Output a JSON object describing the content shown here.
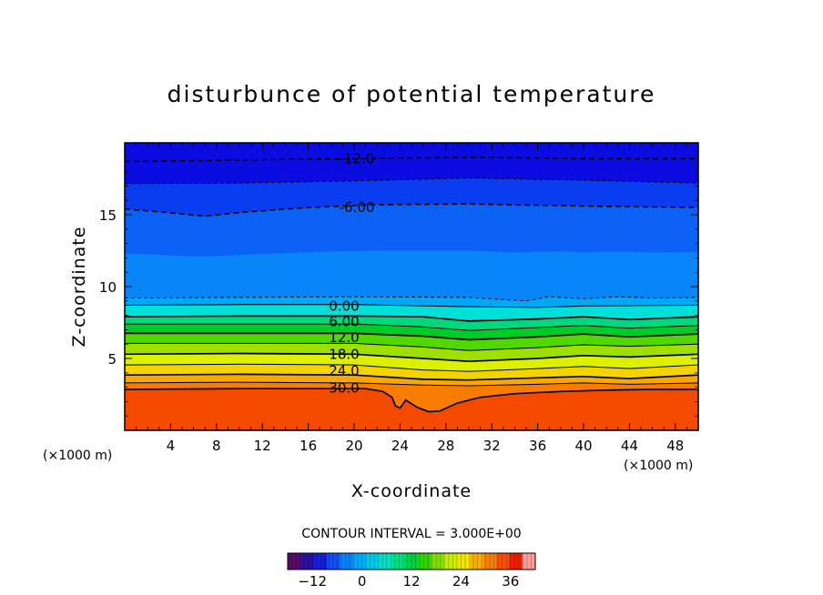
{
  "chart_data": {
    "type": "contour",
    "title": "disturbunce of potential temperature",
    "xlabel": "X-coordinate",
    "ylabel": "Z-coordinate",
    "x_unit": "(×1000 m)",
    "y_unit": "(×1000 m)",
    "xlim": [
      0,
      50
    ],
    "ylim": [
      0,
      20
    ],
    "x_ticks": [
      4,
      8,
      12,
      16,
      20,
      24,
      28,
      32,
      36,
      40,
      44,
      48
    ],
    "y_ticks": [
      5,
      10,
      15
    ],
    "contour_interval_text": "CONTOUR INTERVAL = 3.000E+00",
    "contour_interval": 3.0,
    "fill_levels": [
      -12,
      -9,
      -6,
      -3,
      0,
      3,
      6,
      9,
      12,
      15,
      18,
      21,
      24,
      27,
      30,
      33
    ],
    "fill_colors": [
      "#0b0ce0",
      "#0a3df0",
      "#0c62f5",
      "#0a85f8",
      "#00a8f5",
      "#00e0d8",
      "#00d880",
      "#00cc28",
      "#50d800",
      "#a0e000",
      "#dcf000",
      "#f4d400",
      "#f8a800",
      "#f87c00",
      "#f44a00",
      "#ee2a00"
    ],
    "colorbar_colors": [
      "#5a0a6a",
      "#2a10a0",
      "#1420d8",
      "#1050f0",
      "#0a80f8",
      "#00a8f5",
      "#00c8e8",
      "#00e0c0",
      "#00e080",
      "#00d040",
      "#30d400",
      "#80dc00",
      "#c8ec00",
      "#f4e400",
      "#f8b000",
      "#f88000",
      "#f45000",
      "#e82000",
      "#ff9c9c"
    ],
    "colorbar_ticks": [
      -12,
      0,
      12,
      24,
      36
    ],
    "colorbar_tick_labels": [
      "−12",
      "0",
      "12",
      "24",
      "36"
    ],
    "colorbar_range": [
      -18,
      42
    ],
    "contour_labels": [
      {
        "text": "-12.0",
        "level": -12,
        "x": 18.7,
        "z": 18.9
      },
      {
        "text": "-6.00",
        "level": -6,
        "x": 18.7,
        "z": 15.5
      },
      {
        "text": "0.00",
        "level": 0,
        "x": 17.8,
        "z": 8.65
      },
      {
        "text": "6.00",
        "level": 6,
        "x": 17.8,
        "z": 7.55
      },
      {
        "text": "12.0",
        "level": 12,
        "x": 17.8,
        "z": 6.45
      },
      {
        "text": "18.0",
        "level": 18,
        "x": 17.8,
        "z": 5.3
      },
      {
        "text": "24.0",
        "level": 24,
        "x": 17.8,
        "z": 4.15
      },
      {
        "text": "30.0",
        "level": 30,
        "x": 17.8,
        "z": 2.95
      }
    ],
    "contour_lines": [
      {
        "level": -12,
        "style": "dashed",
        "x": [
          0,
          10,
          20,
          30,
          40,
          50
        ],
        "z": [
          18.7,
          18.8,
          18.9,
          19.0,
          18.9,
          18.9
        ]
      },
      {
        "level": -9,
        "style": "dashed-thin",
        "x": [
          0,
          10,
          20,
          30,
          40,
          50
        ],
        "z": [
          17.15,
          17.2,
          17.35,
          17.55,
          17.4,
          17.2
        ]
      },
      {
        "level": -6,
        "style": "dashed",
        "x": [
          0,
          3,
          7,
          10,
          16,
          22,
          30,
          40,
          50
        ],
        "z": [
          15.4,
          15.2,
          14.9,
          15.15,
          15.5,
          15.7,
          15.75,
          15.6,
          15.5
        ]
      },
      {
        "level": 0,
        "style": "dashed-thin",
        "x": [
          0,
          10,
          20,
          30,
          35,
          37,
          40,
          43,
          46,
          50
        ],
        "z": [
          9.2,
          9.25,
          9.3,
          9.25,
          9.0,
          9.3,
          9.15,
          9.3,
          9.2,
          9.25
        ]
      },
      {
        "level": 3,
        "style": "solid",
        "x": [
          0,
          10,
          20,
          30,
          36,
          40,
          50
        ],
        "z": [
          8.7,
          8.75,
          8.75,
          8.6,
          8.55,
          8.65,
          8.7
        ]
      },
      {
        "level": 6,
        "style": "solid",
        "x": [
          0,
          10,
          20,
          26,
          30,
          36,
          40,
          44,
          50
        ],
        "z": [
          7.9,
          7.95,
          7.95,
          7.9,
          7.6,
          7.75,
          7.9,
          7.7,
          7.9
        ]
      },
      {
        "level": 9,
        "style": "solid",
        "x": [
          0,
          10,
          20,
          26,
          30,
          36,
          40,
          44,
          50
        ],
        "z": [
          7.4,
          7.4,
          7.4,
          7.2,
          6.95,
          7.15,
          7.3,
          7.1,
          7.3
        ]
      },
      {
        "level": 12,
        "style": "solid",
        "x": [
          0,
          10,
          20,
          26,
          30,
          36,
          40,
          44,
          50
        ],
        "z": [
          6.75,
          6.75,
          6.75,
          6.55,
          6.3,
          6.5,
          6.7,
          6.5,
          6.7
        ]
      },
      {
        "level": 15,
        "style": "solid",
        "x": [
          0,
          10,
          20,
          26,
          30,
          36,
          40,
          44,
          50
        ],
        "z": [
          6.05,
          6.05,
          6.05,
          5.8,
          5.55,
          5.75,
          5.95,
          5.85,
          6.0
        ]
      },
      {
        "level": 18,
        "style": "solid",
        "x": [
          0,
          10,
          20,
          26,
          30,
          36,
          40,
          44,
          50
        ],
        "z": [
          5.3,
          5.35,
          5.3,
          5.0,
          4.8,
          5.0,
          5.2,
          5.1,
          5.3
        ]
      },
      {
        "level": 21,
        "style": "solid",
        "x": [
          0,
          10,
          20,
          26,
          30,
          36,
          40,
          44,
          50
        ],
        "z": [
          4.55,
          4.6,
          4.55,
          4.2,
          4.1,
          4.3,
          4.45,
          4.3,
          4.55
        ]
      },
      {
        "level": 24,
        "style": "solid",
        "x": [
          0,
          10,
          20,
          26,
          30,
          36,
          40,
          44,
          50
        ],
        "z": [
          3.85,
          3.9,
          3.85,
          3.55,
          3.5,
          3.65,
          3.75,
          3.6,
          3.85
        ]
      },
      {
        "level": 27,
        "style": "solid",
        "x": [
          0,
          10,
          20,
          26,
          30,
          36,
          40,
          44,
          50
        ],
        "z": [
          3.3,
          3.35,
          3.3,
          3.15,
          3.1,
          3.2,
          3.3,
          3.2,
          3.3
        ]
      },
      {
        "level": 30,
        "style": "solid",
        "x": [
          0,
          10,
          21,
          22.5,
          23.3,
          23.6,
          24.0,
          24.5,
          25.5,
          26.5,
          27.5,
          29,
          31,
          34,
          38,
          42,
          46,
          50
        ],
        "z": [
          2.85,
          2.9,
          2.9,
          2.7,
          2.3,
          1.7,
          1.55,
          2.1,
          1.6,
          1.3,
          1.35,
          1.9,
          2.3,
          2.55,
          2.7,
          2.8,
          2.85,
          2.85
        ]
      }
    ]
  }
}
